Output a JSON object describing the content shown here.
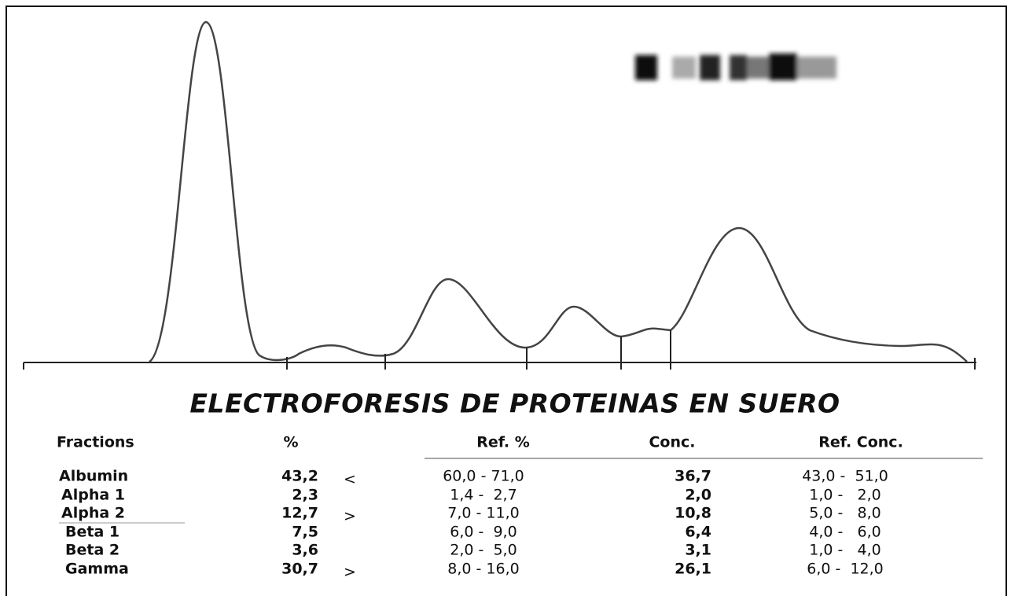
{
  "title": "ELECTROFORESIS DE PROTEINAS EN SUERO",
  "table": {
    "headers": [
      "Fractions",
      "%",
      "Ref. %",
      "Conc.",
      "Ref. Conc."
    ],
    "rows": [
      {
        "fraction": "Albumin",
        "percent": "43,2",
        "flag": "<",
        "ref_percent": "60,0 - 71,0",
        "conc": "36,7",
        "ref_conc": "43,0 -  51,0"
      },
      {
        "fraction": "Alpha 1",
        "percent": "2,3",
        "ref_percent": "1,4 -  2,7",
        "conc": "2,0",
        "ref_conc": "1,0 -   2,0"
      },
      {
        "fraction": "Alpha 2",
        "percent": "12,7",
        "flag": ">",
        "ref_percent": "7,0 - 11,0",
        "conc": "10,8",
        "ref_conc": "5,0 -   8,0"
      },
      {
        "fraction": "Beta 1",
        "percent": "7,5",
        "ref_percent": "6,0 -  9,0",
        "conc": "6,4",
        "ref_conc": "4,0 -   6,0"
      },
      {
        "fraction": "Beta 2",
        "percent": "3,6",
        "ref_percent": "2,0 -  5,0",
        "conc": "3,1",
        "ref_conc": "1,0 -   4,0"
      },
      {
        "fraction": "Gamma",
        "percent": "30,7",
        "flag": ">",
        "ref_percent": "8,0 - 16,0",
        "conc": "26,1",
        "ref_conc": "6,0 -  12,0"
      }
    ]
  }
}
